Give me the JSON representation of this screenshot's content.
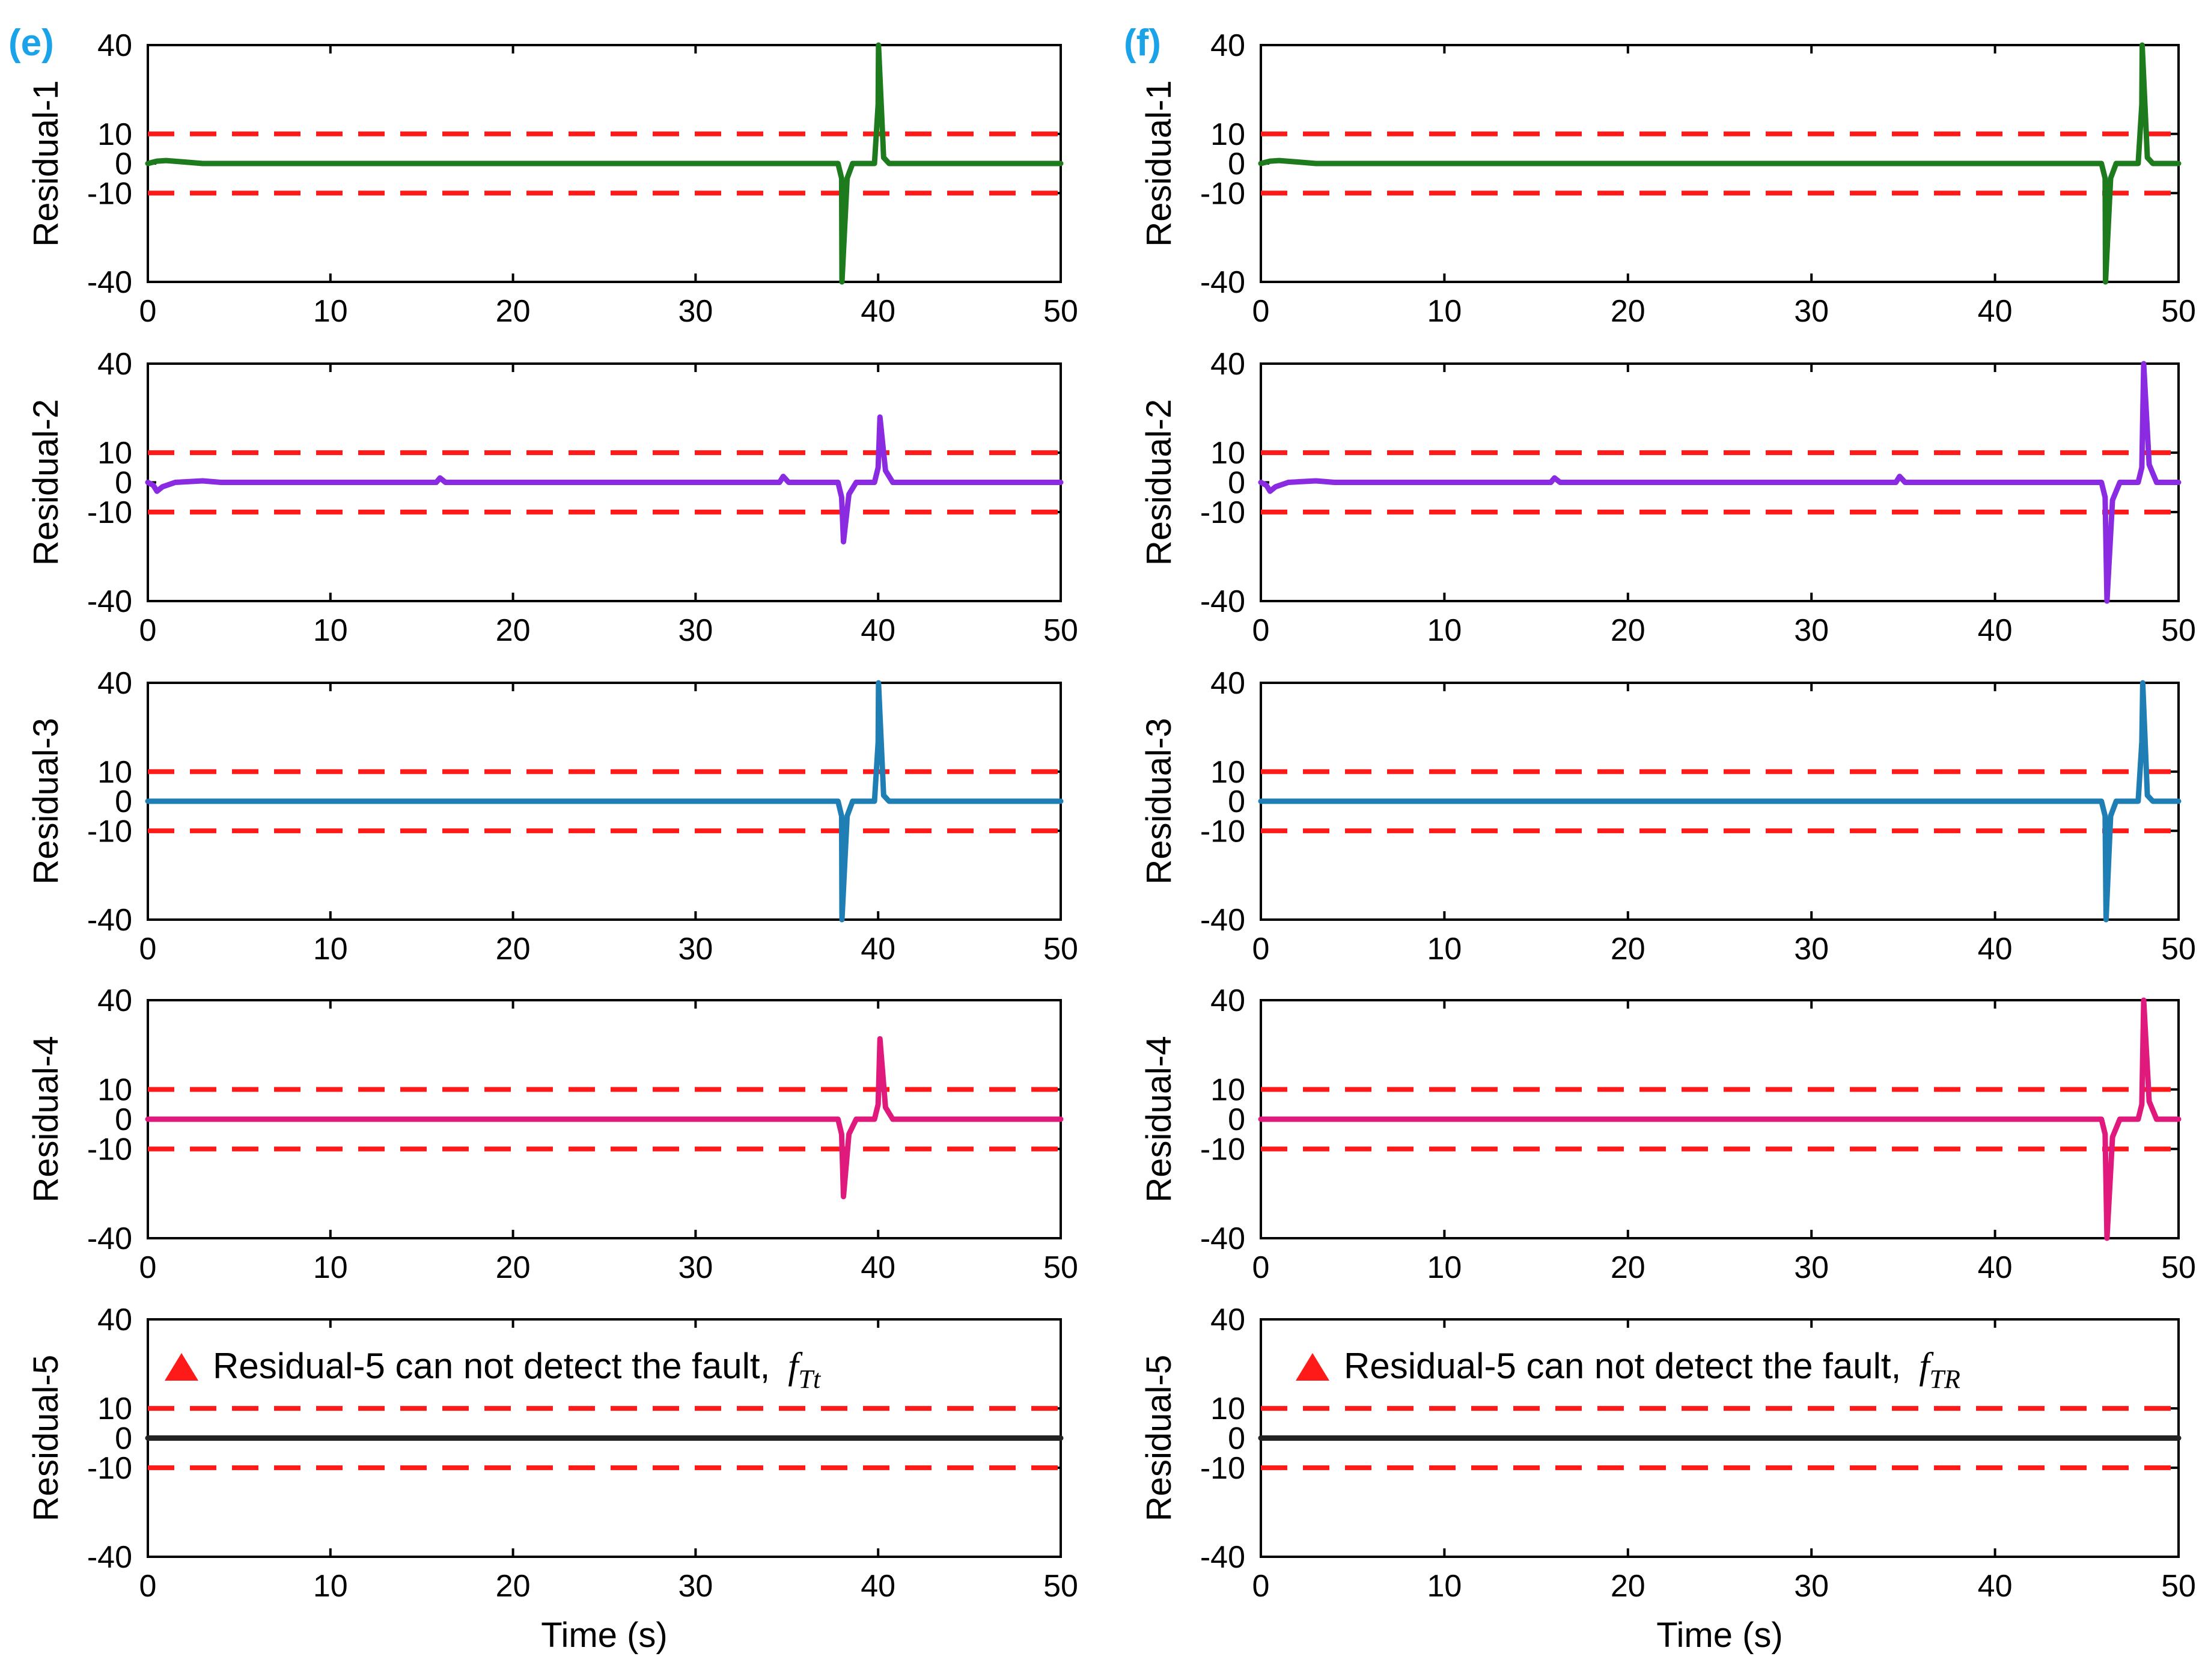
{
  "figure": {
    "shared": {
      "xlabel": "Time (s)",
      "xlim": [
        0,
        50
      ],
      "ylim": [
        -40,
        40
      ],
      "xticks": [
        0,
        10,
        20,
        30,
        40,
        50
      ],
      "yticks": [
        -40,
        -10,
        0,
        10,
        40
      ],
      "threshold": 10,
      "threshold_color": "#ff1a1a",
      "series_colors": [
        "#1d7a1d",
        "#8a2be2",
        "#1f7fb5",
        "#e0197d",
        "#222222"
      ]
    },
    "panels": [
      {
        "label": "(e)",
        "label_color": "#1aa3e8",
        "note": "Residual-5 can not detect the fault,",
        "note_fault": "f_Tt"
      },
      {
        "label": "(f)",
        "label_color": "#1aa3e8",
        "note": "Residual-5 can not detect the fault,",
        "note_fault": "f_TR"
      }
    ]
  },
  "chart_data": [
    {
      "type": "line",
      "panel": "e",
      "ylabel": "Residual-1",
      "xlabel": "",
      "xlim": [
        0,
        50
      ],
      "ylim": [
        -40,
        40
      ],
      "threshold": [
        -10,
        10
      ],
      "color": "#1d7a1d",
      "series": [
        {
          "x": [
            0,
            0.5,
            1,
            2,
            3,
            37.8,
            38,
            38.02,
            38.3,
            38.6,
            39.8,
            40,
            40.02,
            40.3,
            40.6,
            50
          ],
          "y": [
            0,
            0.8,
            1,
            0.5,
            0,
            0,
            -5,
            -40,
            -5,
            0,
            0,
            20,
            40,
            2,
            0,
            0
          ]
        }
      ]
    },
    {
      "type": "line",
      "panel": "e",
      "ylabel": "Residual-2",
      "xlabel": "",
      "xlim": [
        0,
        50
      ],
      "ylim": [
        -40,
        40
      ],
      "threshold": [
        -10,
        10
      ],
      "color": "#8a2be2",
      "series": [
        {
          "x": [
            0,
            0.3,
            0.5,
            0.8,
            1.5,
            3,
            4,
            15.8,
            16,
            16.3,
            34.6,
            34.8,
            35.1,
            37.8,
            38,
            38.1,
            38.4,
            38.8,
            39.8,
            40,
            40.1,
            40.4,
            40.8,
            50
          ],
          "y": [
            0,
            -1,
            -3,
            -1.5,
            0,
            0.5,
            0,
            0,
            1.5,
            0,
            0,
            2,
            0,
            0,
            -5,
            -20,
            -4,
            0,
            0,
            5,
            22,
            4,
            0,
            0
          ]
        }
      ]
    },
    {
      "type": "line",
      "panel": "e",
      "ylabel": "Residual-3",
      "xlabel": "",
      "xlim": [
        0,
        50
      ],
      "ylim": [
        -40,
        40
      ],
      "threshold": [
        -10,
        10
      ],
      "color": "#1f7fb5",
      "series": [
        {
          "x": [
            0,
            37.8,
            38,
            38.02,
            38.3,
            38.6,
            39.8,
            40,
            40.02,
            40.3,
            40.6,
            50
          ],
          "y": [
            0,
            0,
            -5,
            -40,
            -5,
            0,
            0,
            20,
            40,
            2,
            0,
            0
          ]
        }
      ]
    },
    {
      "type": "line",
      "panel": "e",
      "ylabel": "Residual-4",
      "xlabel": "",
      "xlim": [
        0,
        50
      ],
      "ylim": [
        -40,
        40
      ],
      "threshold": [
        -10,
        10
      ],
      "color": "#e0197d",
      "series": [
        {
          "x": [
            0,
            37.8,
            38,
            38.1,
            38.4,
            38.8,
            39.8,
            40,
            40.1,
            40.4,
            40.8,
            50
          ],
          "y": [
            0,
            0,
            -5,
            -26,
            -5,
            0,
            0,
            5,
            27,
            4,
            0,
            0
          ]
        }
      ]
    },
    {
      "type": "line",
      "panel": "e",
      "ylabel": "Residual-5",
      "xlabel": "Time (s)",
      "xlim": [
        0,
        50
      ],
      "ylim": [
        -40,
        40
      ],
      "threshold": [
        -10,
        10
      ],
      "color": "#222222",
      "series": [
        {
          "x": [
            0,
            50
          ],
          "y": [
            0,
            0
          ]
        }
      ]
    },
    {
      "type": "line",
      "panel": "f",
      "ylabel": "Residual-1",
      "xlabel": "",
      "xlim": [
        0,
        50
      ],
      "ylim": [
        -40,
        40
      ],
      "threshold": [
        -10,
        10
      ],
      "color": "#1d7a1d",
      "series": [
        {
          "x": [
            0,
            0.5,
            1,
            2,
            3,
            45.8,
            46,
            46.02,
            46.3,
            46.6,
            47.8,
            48,
            48.02,
            48.3,
            48.6,
            50
          ],
          "y": [
            0,
            0.8,
            1,
            0.5,
            0,
            0,
            -5,
            -40,
            -5,
            0,
            0,
            20,
            40,
            2,
            0,
            0
          ]
        }
      ]
    },
    {
      "type": "line",
      "panel": "f",
      "ylabel": "Residual-2",
      "xlabel": "",
      "xlim": [
        0,
        50
      ],
      "ylim": [
        -40,
        40
      ],
      "threshold": [
        -10,
        10
      ],
      "color": "#8a2be2",
      "series": [
        {
          "x": [
            0,
            0.3,
            0.5,
            0.8,
            1.5,
            3,
            4,
            15.8,
            16,
            16.3,
            34.6,
            34.8,
            35.1,
            45.8,
            46,
            46.1,
            46.4,
            46.8,
            47.8,
            48,
            48.1,
            48.4,
            48.8,
            50
          ],
          "y": [
            0,
            -1,
            -3,
            -1.5,
            0,
            0.5,
            0,
            0,
            1.5,
            0,
            0,
            2,
            0,
            0,
            -5,
            -40,
            -6,
            0,
            0,
            5,
            40,
            6,
            0,
            0
          ]
        }
      ]
    },
    {
      "type": "line",
      "panel": "f",
      "ylabel": "Residual-3",
      "xlabel": "",
      "xlim": [
        0,
        50
      ],
      "ylim": [
        -40,
        40
      ],
      "threshold": [
        -10,
        10
      ],
      "color": "#1f7fb5",
      "series": [
        {
          "x": [
            0,
            45.8,
            46,
            46.05,
            46.3,
            46.6,
            47.8,
            48,
            48.05,
            48.3,
            48.6,
            50
          ],
          "y": [
            0,
            0,
            -5,
            -40,
            -5,
            0,
            0,
            20,
            40,
            2,
            0,
            0
          ]
        }
      ]
    },
    {
      "type": "line",
      "panel": "f",
      "ylabel": "Residual-4",
      "xlabel": "",
      "xlim": [
        0,
        50
      ],
      "ylim": [
        -40,
        40
      ],
      "threshold": [
        -10,
        10
      ],
      "color": "#e0197d",
      "series": [
        {
          "x": [
            0,
            45.8,
            46,
            46.1,
            46.4,
            46.8,
            47.8,
            48,
            48.1,
            48.4,
            48.8,
            50
          ],
          "y": [
            0,
            0,
            -5,
            -40,
            -6,
            0,
            0,
            5,
            40,
            6,
            0,
            0
          ]
        }
      ]
    },
    {
      "type": "line",
      "panel": "f",
      "ylabel": "Residual-5",
      "xlabel": "Time (s)",
      "xlim": [
        0,
        50
      ],
      "ylim": [
        -40,
        40
      ],
      "threshold": [
        -10,
        10
      ],
      "color": "#222222",
      "series": [
        {
          "x": [
            0,
            50
          ],
          "y": [
            0,
            0
          ]
        }
      ]
    }
  ]
}
